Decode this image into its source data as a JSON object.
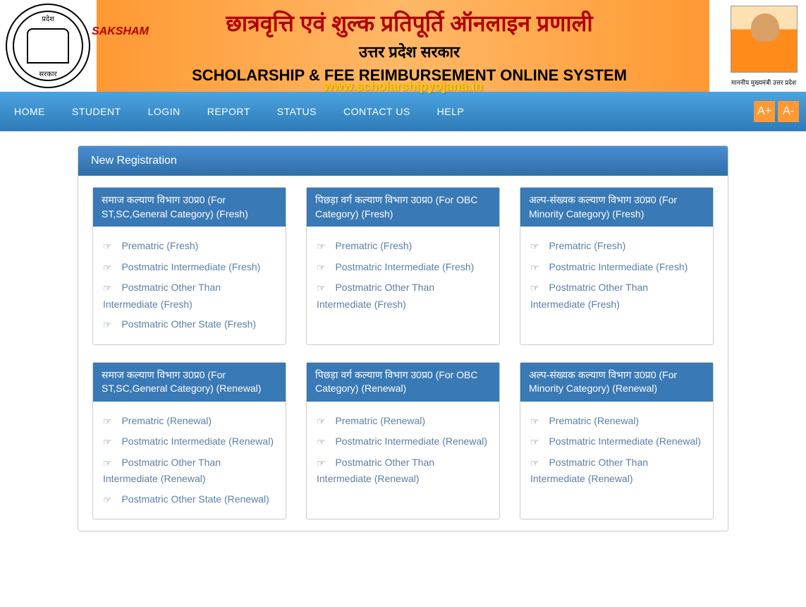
{
  "header": {
    "title_hindi": "छात्रवृत्ति एवं शुल्क प्रतिपूर्ति ऑनलाइन प्रणाली",
    "saksham": "SAKSHAM",
    "subtitle_hindi": "उत्तर प्रदेश सरकार",
    "title_en": "SCHOLARSHIP & FEE REIMBURSEMENT ONLINE SYSTEM",
    "emblem_top": "प्रदेश",
    "emblem_bottom": "सरकार",
    "cm_caption": "माननीय मुख्यमंत्री उत्तर प्रदेश",
    "watermark": "www.scholarshipyojana.in"
  },
  "nav": {
    "items": [
      "HOME",
      "STUDENT",
      "LOGIN",
      "REPORT",
      "STATUS",
      "CONTACT US",
      "HELP"
    ],
    "font_plus": "A+",
    "font_minus": "A-"
  },
  "panel": {
    "title": "New Registration",
    "cards": [
      {
        "title": "समाज कल्याण विभाग उ0प्र0 (For ST,SC,General Category) (Fresh)",
        "links": [
          "Prematric (Fresh)",
          "Postmatric Intermediate (Fresh)",
          "Postmatric Other Than Intermediate (Fresh)",
          "Postmatric Other State (Fresh)"
        ]
      },
      {
        "title": "पिछड़ा वर्ग कल्याण विभाग उ0प्र0 (For OBC Category) (Fresh)",
        "links": [
          "Prematric (Fresh)",
          "Postmatric Intermediate (Fresh)",
          "Postmatric Other Than Intermediate (Fresh)"
        ]
      },
      {
        "title": "अल्प-संख्यक कल्याण विभाग उ0प्र0 (For Minority Category) (Fresh)",
        "links": [
          "Prematric (Fresh)",
          "Postmatric Intermediate (Fresh)",
          "Postmatric Other Than Intermediate (Fresh)"
        ]
      },
      {
        "title": "समाज कल्याण विभाग उ0प्र0 (For ST,SC,General Category) (Renewal)",
        "links": [
          "Prematric (Renewal)",
          "Postmatric Intermediate (Renewal)",
          "Postmatric Other Than Intermediate (Renewal)",
          "Postmatric Other State (Renewal)"
        ]
      },
      {
        "title": "पिछड़ा वर्ग कल्याण विभाग उ0प्र0 (For OBC Category) (Renewal)",
        "links": [
          "Prematric (Renewal)",
          "Postmatric Intermediate (Renewal)",
          "Postmatric Other Than Intermediate (Renewal)"
        ]
      },
      {
        "title": "अल्प-संख्यक कल्याण विभाग उ0प्र0 (For Minority Category) (Renewal)",
        "links": [
          "Prematric (Renewal)",
          "Postmatric Intermediate (Renewal)",
          "Postmatric Other Than Intermediate (Renewal)"
        ]
      }
    ]
  }
}
